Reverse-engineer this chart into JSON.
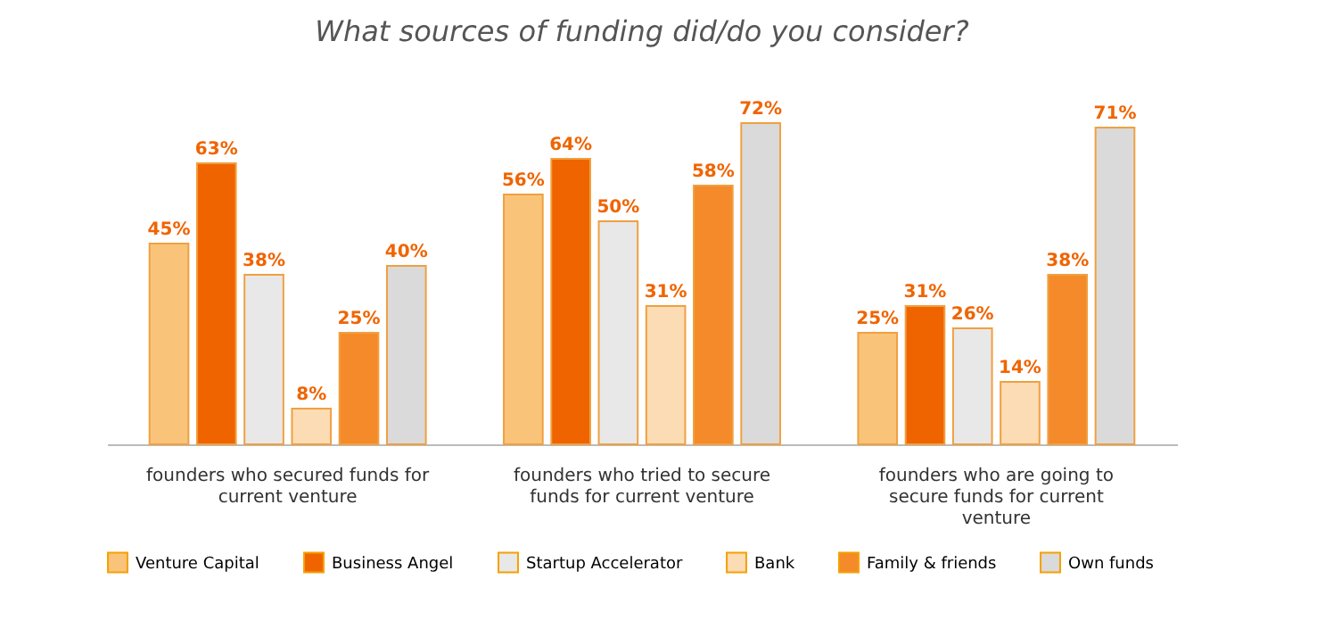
{
  "chart_data": {
    "type": "bar",
    "title": "What sources of funding did/do you consider?",
    "categories": [
      "founders who secured funds for current venture",
      "founders who tried to secure funds for current venture",
      "founders who are going to secure funds for current venture"
    ],
    "series": [
      {
        "name": "Venture Capital",
        "color": "#f9c47a",
        "values": [
          45,
          56,
          25
        ],
        "value_labels": [
          "45%",
          "56%",
          "25%"
        ]
      },
      {
        "name": "Business Angel",
        "color": "#f06400",
        "values": [
          63,
          64,
          31
        ],
        "value_labels": [
          "63%",
          "64%",
          "31%"
        ]
      },
      {
        "name": "Startup Accelerator",
        "color": "#e8e8e8",
        "values": [
          38,
          50,
          26
        ],
        "value_labels": [
          "38%",
          "50%",
          "26%"
        ]
      },
      {
        "name": "Bank",
        "color": "#fbdcb4",
        "values": [
          8,
          31,
          14
        ],
        "value_labels": [
          "8%",
          "31%",
          "14%"
        ]
      },
      {
        "name": "Family & friends",
        "color": "#f58a2a",
        "values": [
          25,
          58,
          38
        ],
        "value_labels": [
          "25%",
          "58%",
          "38%"
        ]
      },
      {
        "name": "Own funds",
        "color": "#dadada",
        "values": [
          40,
          72,
          71
        ],
        "value_labels": [
          "40%",
          "72%",
          "71%"
        ]
      }
    ],
    "legend": "bottom"
  }
}
